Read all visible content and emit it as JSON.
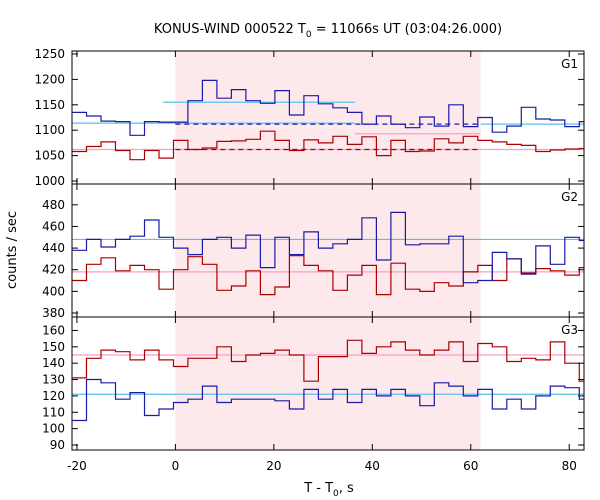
{
  "chart_data": {
    "type": "line",
    "title_main": "KONUS-WIND 000522 T",
    "title_sub": "0",
    "title_rest": " = 11066s UT (03:04:26.000)",
    "xlabel_main": "T - T",
    "xlabel_sub": "0",
    "xlabel_rest": ", s",
    "ylabel": "counts / sec",
    "xlim": [
      -21,
      83
    ],
    "xticks": [
      -20,
      0,
      20,
      40,
      60,
      80
    ],
    "highlight": [
      0,
      62
    ],
    "bin_width": 2.944,
    "bin_start": -21.0,
    "colors": {
      "red": "#aa0000",
      "blue": "#1a1aa8",
      "light_red": "#ff9bc8",
      "light_blue": "#5bc0e8",
      "band": "#fde8ec",
      "axis": "#000000"
    },
    "panels": [
      {
        "label": "G1",
        "ylim": [
          1000,
          1250
        ],
        "yticks": [
          1000,
          1050,
          1100,
          1150,
          1200,
          1250
        ],
        "series": [
          {
            "color": "red",
            "values": [
              1058,
              1068,
              1077,
              1060,
              1042,
              1060,
              1045,
              1080,
              1062,
              1065,
              1078,
              1079,
              1082,
              1098,
              1080,
              1060,
              1081,
              1075,
              1088,
              1072,
              1087,
              1050,
              1080,
              1058,
              1059,
              1083,
              1075,
              1088,
              1080,
              1077,
              1072,
              1070,
              1058,
              1061,
              1063,
              1064,
              1060,
              1078
            ]
          },
          {
            "color": "blue",
            "values": [
              1135,
              1128,
              1118,
              1117,
              1090,
              1117,
              1116,
              1116,
              1158,
              1198,
              1163,
              1180,
              1158,
              1153,
              1178,
              1130,
              1168,
              1152,
              1144,
              1135,
              1112,
              1128,
              1112,
              1105,
              1126,
              1108,
              1150,
              1107,
              1125,
              1096,
              1108,
              1145,
              1122,
              1120,
              1107,
              1117,
              1112,
              1100
            ]
          }
        ],
        "fits": [
          {
            "color": "light_blue",
            "start": -21,
            "end": 36.5,
            "value": 1114,
            "dashed": false
          },
          {
            "color": "light_blue",
            "start": -2.5,
            "end": 36.5,
            "value": 1155,
            "dashed": false
          },
          {
            "color": "blue",
            "start": 0,
            "end": 62,
            "value": 1112,
            "dashed": true
          },
          {
            "color": "light_blue",
            "start": 62,
            "end": 83,
            "value": 1112,
            "dashed": false
          },
          {
            "color": "light_red",
            "start": -21,
            "end": 83,
            "value": 1062,
            "dashed": false
          },
          {
            "color": "red",
            "start": 0,
            "end": 62,
            "value": 1062,
            "dashed": true
          },
          {
            "color": "light_red",
            "start": 36.5,
            "end": 62,
            "value": 1093,
            "dashed": false
          }
        ]
      },
      {
        "label": "G2",
        "ylim": [
          380,
          490
        ],
        "yticks": [
          380,
          400,
          420,
          440,
          460,
          480
        ],
        "series": [
          {
            "color": "red",
            "values": [
              410,
              425,
              431,
              419,
              424,
              420,
              402,
              420,
              432,
              425,
              401,
              405,
              419,
              397,
              404,
              433,
              424,
              419,
              401,
              415,
              424,
              397,
              426,
              402,
              400,
              408,
              405,
              418,
              424,
              410,
              430,
              417,
              421,
              419,
              415,
              422,
              418,
              380
            ]
          },
          {
            "color": "blue",
            "values": [
              438,
              448,
              441,
              448,
              451,
              466,
              450,
              440,
              434,
              448,
              450,
              440,
              452,
              422,
              450,
              434,
              455,
              440,
              444,
              448,
              468,
              429,
              473,
              443,
              444,
              444,
              451,
              408,
              410,
              436,
              430,
              416,
              442,
              425,
              450,
              447,
              450,
              478
            ]
          }
        ],
        "fits": [
          {
            "color": "light_blue",
            "start": -21,
            "end": 83,
            "value": 448,
            "dashed": false
          },
          {
            "color": "light_red",
            "start": -21,
            "end": 83,
            "value": 418,
            "dashed": false
          }
        ]
      },
      {
        "label": "G3",
        "ylim": [
          90,
          167
        ],
        "yticks": [
          90,
          100,
          110,
          120,
          130,
          140,
          150,
          160
        ],
        "series": [
          {
            "color": "red",
            "values": [
              131,
              143,
              148,
              147,
              142,
              148,
              142,
              138,
              143,
              143,
              150,
              141,
              145,
              146,
              148,
              145,
              129,
              144,
              144,
              154,
              146,
              150,
              153,
              148,
              145,
              148,
              153,
              141,
              152,
              150,
              141,
              143,
              142,
              153,
              140,
              129,
              141,
              158
            ]
          },
          {
            "color": "blue",
            "values": [
              105,
              130,
              128,
              118,
              122,
              108,
              112,
              116,
              118,
              126,
              116,
              118,
              118,
              118,
              117,
              112,
              124,
              118,
              124,
              116,
              124,
              120,
              124,
              120,
              114,
              128,
              126,
              120,
              124,
              112,
              118,
              112,
              120,
              126,
              125,
              118,
              122,
              128
            ]
          }
        ],
        "fits": [
          {
            "color": "light_blue",
            "start": -21,
            "end": 83,
            "value": 121,
            "dashed": false
          },
          {
            "color": "light_red",
            "start": -21,
            "end": 83,
            "value": 145,
            "dashed": false
          }
        ]
      }
    ]
  }
}
